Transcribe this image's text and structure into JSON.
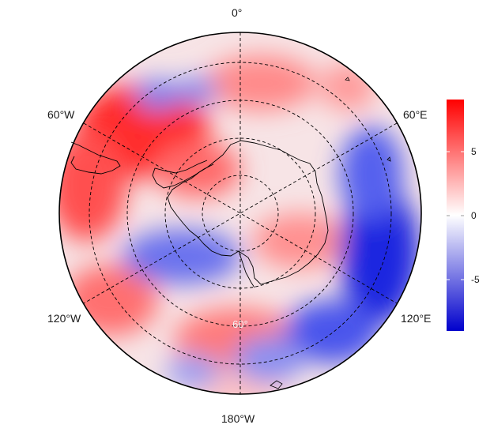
{
  "map": {
    "projection": "south-polar-stereographic",
    "longitude_labels": [
      "0°",
      "60°E",
      "120°E",
      "180°W",
      "120°W",
      "60°W"
    ],
    "inner_ring_label": "60°",
    "field_colors": {
      "low": "#0000cc",
      "mid": "#ffffff",
      "high": "#ff0000"
    }
  },
  "colorbar": {
    "ticks": [
      "5",
      "0",
      "-5"
    ],
    "range": [
      -9,
      9
    ]
  }
}
